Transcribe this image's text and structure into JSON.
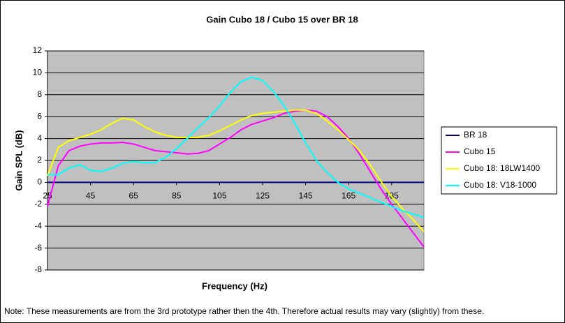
{
  "chart_data": {
    "type": "line",
    "title": "Gain Cubo 18 / Cubo 15 over BR 18",
    "x_label": "Frequency (Hz)",
    "y_label": "Gain SPL (dB)",
    "note": "Note: These measurements are from the 3rd prototype rather then the 4th. Therefore actual results may vary (slightly) from these.",
    "x": [
      25,
      30,
      35,
      40,
      45,
      50,
      55,
      60,
      65,
      70,
      75,
      80,
      85,
      90,
      95,
      100,
      105,
      110,
      115,
      120,
      125,
      130,
      135,
      140,
      145,
      150,
      155,
      160,
      165,
      170,
      175,
      180,
      185,
      190,
      195,
      200
    ],
    "series": [
      {
        "name": "BR 18",
        "color": "#000080",
        "values": [
          0,
          0,
          0,
          0,
          0,
          0,
          0,
          0,
          0,
          0,
          0,
          0,
          0,
          0,
          0,
          0,
          0,
          0,
          0,
          0,
          0,
          0,
          0,
          0,
          0,
          0,
          0,
          0,
          0,
          0,
          0,
          0,
          0,
          0,
          0,
          0
        ]
      },
      {
        "name": "Cubo 15",
        "color": "#ff00ff",
        "values": [
          -2.2,
          1.5,
          2.9,
          3.3,
          3.5,
          3.6,
          3.6,
          3.65,
          3.5,
          3.2,
          2.9,
          2.8,
          2.7,
          2.6,
          2.65,
          2.9,
          3.5,
          4.1,
          4.8,
          5.3,
          5.6,
          5.9,
          6.3,
          6.5,
          6.6,
          6.5,
          6.0,
          5.1,
          4.0,
          2.6,
          1.0,
          -0.6,
          -2.0,
          -3.3,
          -4.6,
          -5.9
        ]
      },
      {
        "name": "Cubo 18: 18LW1400",
        "color": "#ffff00",
        "values": [
          0.6,
          3.2,
          3.8,
          4.1,
          4.4,
          4.8,
          5.4,
          5.85,
          5.7,
          5.1,
          4.6,
          4.3,
          4.1,
          4.1,
          4.1,
          4.3,
          4.7,
          5.2,
          5.7,
          6.1,
          6.3,
          6.4,
          6.5,
          6.6,
          6.6,
          6.3,
          5.6,
          4.8,
          3.9,
          2.9,
          1.6,
          0.1,
          -1.3,
          -2.4,
          -3.4,
          -4.5
        ]
      },
      {
        "name": "Cubo 18: V18-1000",
        "color": "#00ffff",
        "values": [
          0.7,
          0.7,
          1.3,
          1.6,
          1.1,
          1.0,
          1.3,
          1.75,
          1.9,
          1.8,
          1.8,
          2.3,
          3.1,
          4.0,
          5.0,
          5.9,
          7.0,
          8.2,
          9.2,
          9.6,
          9.3,
          8.3,
          7.0,
          5.4,
          3.6,
          2.0,
          0.9,
          0.0,
          -0.6,
          -1.0,
          -1.4,
          -1.8,
          -2.2,
          -2.6,
          -2.9,
          -3.2
        ]
      }
    ],
    "xlim": [
      25,
      200
    ],
    "xticks": [
      25,
      45,
      65,
      85,
      105,
      125,
      145,
      165,
      185
    ],
    "ylim": [
      -8,
      12
    ],
    "yticks": [
      -8,
      -6,
      -4,
      -2,
      0,
      2,
      4,
      6,
      8,
      10,
      12
    ],
    "grid": true,
    "plot_background": "#c0c0c0",
    "legend_position": "right"
  }
}
